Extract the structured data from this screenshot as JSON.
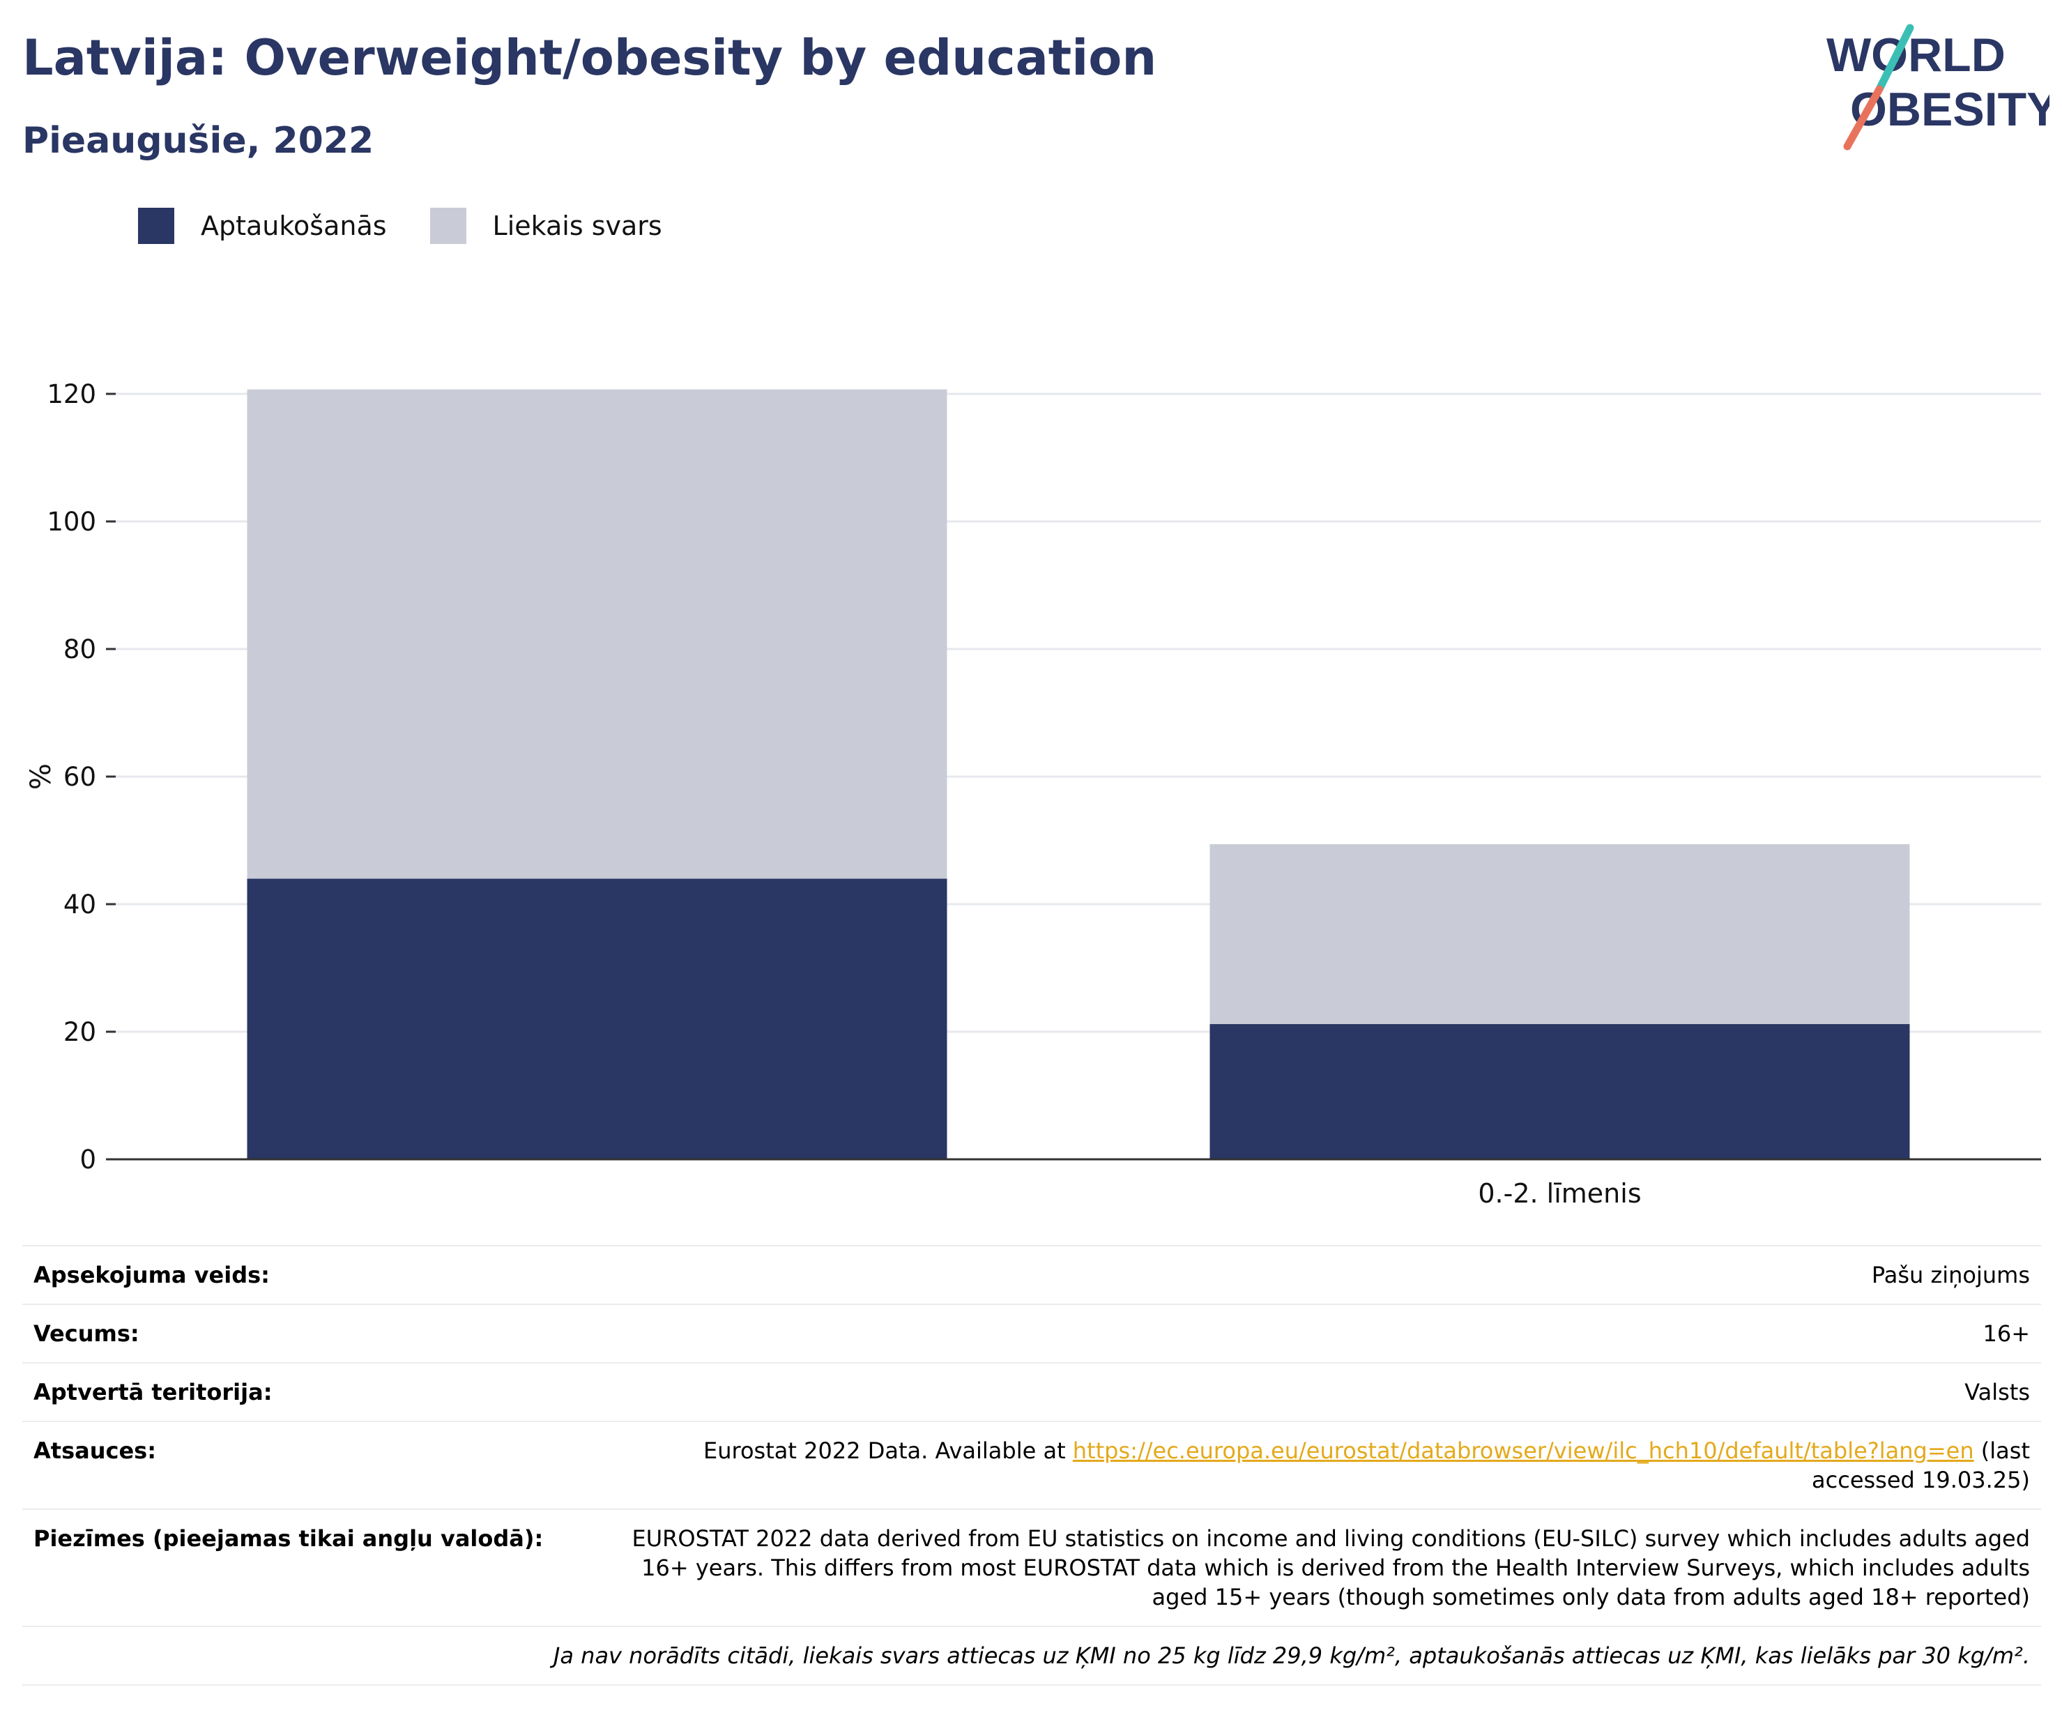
{
  "header": {
    "title": "Latvija: Overweight/obesity by education",
    "subtitle": "Pieaugušie, 2022",
    "logo_line1": "WORLD",
    "logo_line2": "OBESITY"
  },
  "colors": {
    "obesity": "#2a3663",
    "overweight": "#c9ccd7",
    "title": "#2a3663",
    "link": "#e4a91c",
    "logo_teal": "#3bbfb4",
    "logo_coral": "#e8735d"
  },
  "chart_data": {
    "type": "bar",
    "stacked": true,
    "categories": [
      "",
      "0.-2. līmenis"
    ],
    "series": [
      {
        "name": "Aptaukošanās",
        "values": [
          44,
          21.2
        ]
      },
      {
        "name": "Liekais svars",
        "values": [
          76.7,
          28.2
        ]
      }
    ],
    "ylabel": "%",
    "xlabel": "",
    "ylim": [
      0,
      120
    ],
    "yticks": [
      0,
      20,
      40,
      60,
      80,
      100,
      120
    ],
    "grid": true,
    "legend_position": "top-left"
  },
  "meta": {
    "survey_label": "Apsekojuma veids:",
    "survey_value": "Pašu ziņojums",
    "age_label": "Vecums:",
    "age_value": "16+",
    "area_label": "Aptvertā teritorija:",
    "area_value": "Valsts",
    "refs_label": "Atsauces:",
    "refs_prefix": "Eurostat 2022 Data. Available at ",
    "refs_link": "https://ec.europa.eu/eurostat/databrowser/view/ilc_hch10/default/table?lang=en",
    "refs_suffix": " (last accessed 19.03.25)",
    "notes_label": "Piezīmes (pieejamas tikai angļu valodā):",
    "notes_value": "EUROSTAT 2022 data derived from EU statistics on income and living conditions (EU-SILC) survey which includes adults aged 16+ years. This differs from most EUROSTAT data which is derived from the Health Interview Surveys, which includes adults aged 15+ years (though sometimes only data from adults aged 18+ reported)",
    "definition": "Ja nav norādīts citādi, liekais svars attiecas uz ĶMI no 25 kg līdz 29,9 kg/m², aptaukošanās attiecas uz ĶMI, kas lielāks par 30 kg/m²."
  }
}
